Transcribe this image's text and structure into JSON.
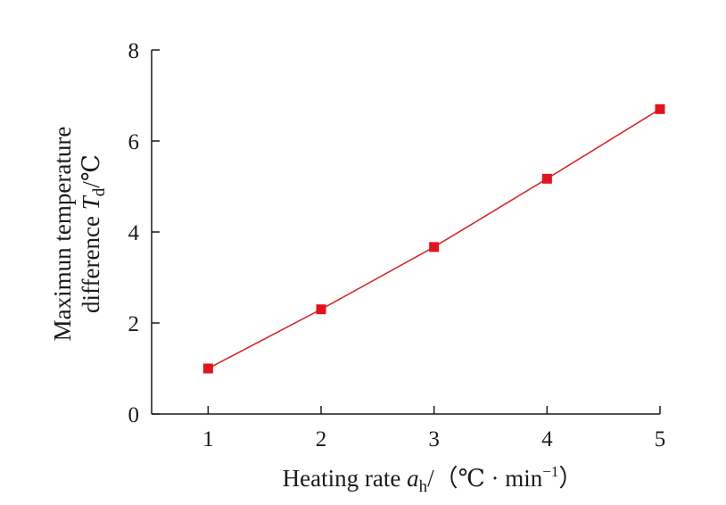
{
  "chart_data": {
    "type": "line",
    "x": [
      1,
      2,
      3,
      4,
      5
    ],
    "series": [
      {
        "values": [
          1.0,
          2.3,
          3.67,
          5.17,
          6.7
        ]
      }
    ],
    "xlim": [
      0.5,
      5
    ],
    "ylim": [
      0,
      8
    ],
    "x_ticks": [
      1,
      2,
      3,
      4,
      5
    ],
    "y_ticks": [
      0,
      2,
      4,
      6,
      8
    ],
    "xlabel": {
      "main": "Heating rate ",
      "var": "a",
      "var_sub": "h",
      "unit_open": "/（℃ · min",
      "unit_sup": "−1",
      "unit_close": "）"
    },
    "ylabel": {
      "line1": "Maximun temperature",
      "line2_main": "difference ",
      "var": "T",
      "var_sub": "d",
      "unit": "/℃"
    },
    "grid": false,
    "legend": "none",
    "line_color": "#d42a2a",
    "marker_color": "#e0141e",
    "marker": "square"
  }
}
